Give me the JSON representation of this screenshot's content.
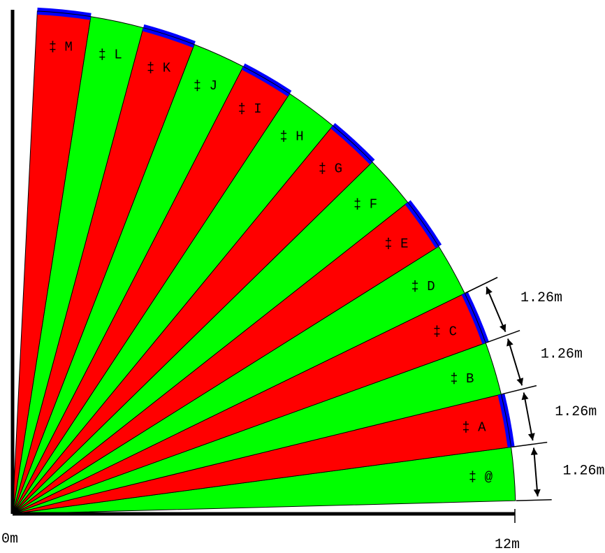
{
  "wedges": [
    {
      "label": "‡ @",
      "color": "green",
      "cap": false
    },
    {
      "label": "‡ A",
      "color": "red",
      "cap": true
    },
    {
      "label": "‡ B",
      "color": "green",
      "cap": false
    },
    {
      "label": "‡ C",
      "color": "red",
      "cap": true
    },
    {
      "label": "‡ D",
      "color": "green",
      "cap": false
    },
    {
      "label": "‡ E",
      "color": "red",
      "cap": true
    },
    {
      "label": "‡ F",
      "color": "green",
      "cap": false
    },
    {
      "label": "‡ G",
      "color": "red",
      "cap": true
    },
    {
      "label": "‡ H",
      "color": "green",
      "cap": false
    },
    {
      "label": "‡ I",
      "color": "red",
      "cap": true
    },
    {
      "label": "‡ J",
      "color": "green",
      "cap": false
    },
    {
      "label": "‡ K",
      "color": "red",
      "cap": true
    },
    {
      "label": "‡ L",
      "color": "green",
      "cap": false
    },
    {
      "label": "‡ M",
      "color": "red",
      "cap": true
    }
  ],
  "dimensions": [
    "1.26m",
    "1.26m",
    "1.26m",
    "1.26m"
  ],
  "axis": {
    "origin_label": "0m",
    "end_label": "12m"
  },
  "colors": {
    "red": "#ff0000",
    "green": "#00ff00",
    "cap": "#0000ff",
    "line": "#000000"
  }
}
